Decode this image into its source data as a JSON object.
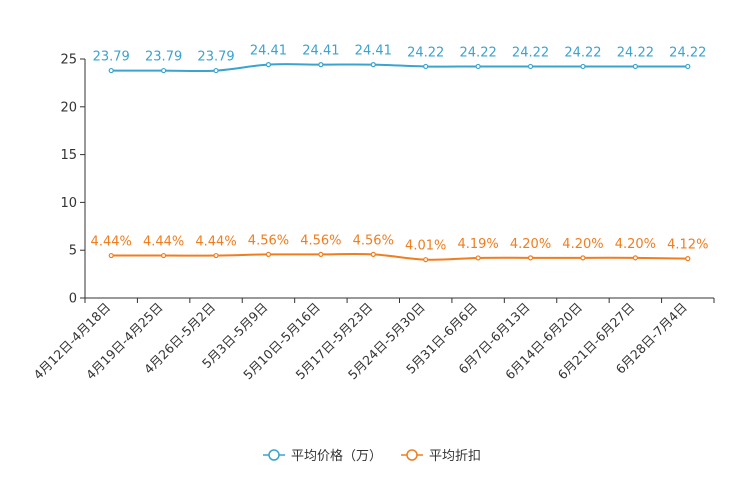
{
  "chart_data": {
    "type": "line",
    "categories": [
      "4月12日-4月18日",
      "4月19日-4月25日",
      "4月26日-5月2日",
      "5月3日-5月9日",
      "5月10日-5月16日",
      "5月17日-5月23日",
      "5月24日-5月30日",
      "5月31日-6月6日",
      "6月7日-6月13日",
      "6月14日-6月20日",
      "6月21日-6月27日",
      "6月28日-7月4日"
    ],
    "ylim": [
      0,
      25
    ],
    "yticks": [
      0,
      5,
      10,
      15,
      20,
      25
    ],
    "series": [
      {
        "name": "平均价格（万）",
        "color": "#3aa3d0",
        "values": [
          23.79,
          23.79,
          23.79,
          24.41,
          24.41,
          24.41,
          24.22,
          24.22,
          24.22,
          24.22,
          24.22,
          24.22
        ],
        "labels": [
          "23.79",
          "23.79",
          "23.79",
          "24.41",
          "24.41",
          "24.41",
          "24.22",
          "24.22",
          "24.22",
          "24.22",
          "24.22",
          "24.22"
        ]
      },
      {
        "name": "平均折扣",
        "color": "#f07d1e",
        "values": [
          4.44,
          4.44,
          4.44,
          4.56,
          4.56,
          4.56,
          4.01,
          4.19,
          4.2,
          4.2,
          4.2,
          4.12
        ],
        "labels": [
          "4.44%",
          "4.44%",
          "4.44%",
          "4.56%",
          "4.56%",
          "4.56%",
          "4.01%",
          "4.19%",
          "4.20%",
          "4.20%",
          "4.20%",
          "4.12%"
        ]
      }
    ],
    "legend_position": "bottom-center"
  }
}
